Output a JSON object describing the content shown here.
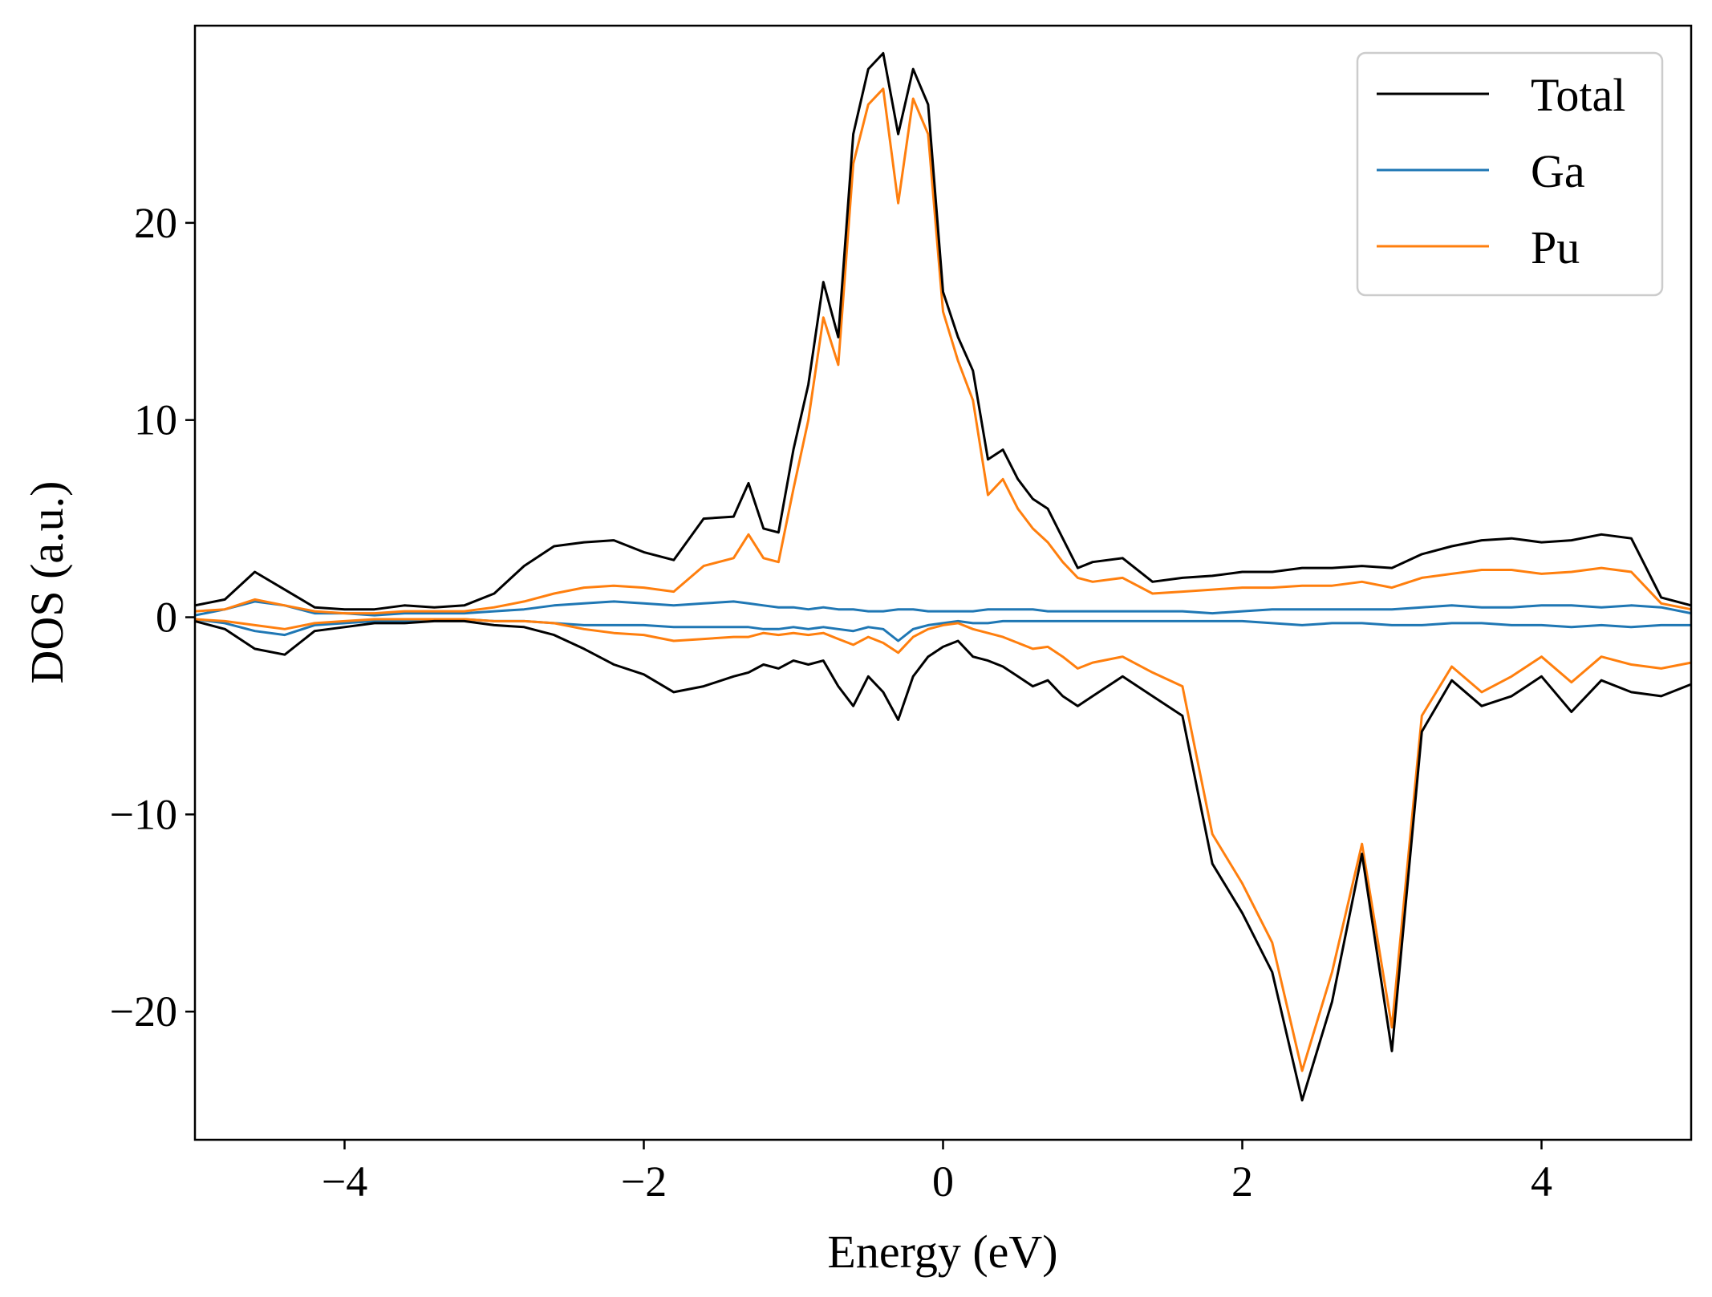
{
  "chart_data": {
    "type": "line",
    "title": "",
    "xlabel": "Energy (eV)",
    "ylabel": "DOS (a.u.)",
    "xlim": [
      -5,
      5
    ],
    "ylim": [
      -26.5,
      30
    ],
    "xticks": [
      -4,
      -2,
      0,
      2,
      4
    ],
    "xtick_labels": [
      "−4",
      "−2",
      "0",
      "2",
      "4"
    ],
    "yticks": [
      -20,
      -10,
      0,
      10,
      20
    ],
    "ytick_labels": [
      "−20",
      "−10",
      "0",
      "10",
      "20"
    ],
    "grid": false,
    "legend_position": "top-right",
    "x": [
      -5.0,
      -4.8,
      -4.6,
      -4.4,
      -4.2,
      -4.0,
      -3.8,
      -3.6,
      -3.4,
      -3.2,
      -3.0,
      -2.8,
      -2.6,
      -2.4,
      -2.2,
      -2.0,
      -1.8,
      -1.6,
      -1.4,
      -1.3,
      -1.2,
      -1.1,
      -1.0,
      -0.9,
      -0.8,
      -0.7,
      -0.6,
      -0.5,
      -0.4,
      -0.3,
      -0.2,
      -0.1,
      0.0,
      0.1,
      0.2,
      0.3,
      0.4,
      0.5,
      0.6,
      0.7,
      0.8,
      0.9,
      1.0,
      1.2,
      1.4,
      1.6,
      1.8,
      2.0,
      2.2,
      2.4,
      2.6,
      2.8,
      3.0,
      3.2,
      3.4,
      3.6,
      3.8,
      4.0,
      4.2,
      4.4,
      4.6,
      4.8,
      5.0
    ],
    "series": [
      {
        "name": "Total",
        "color": "#000000",
        "up": [
          0.6,
          0.9,
          2.3,
          1.4,
          0.5,
          0.4,
          0.4,
          0.6,
          0.5,
          0.6,
          1.2,
          2.6,
          3.6,
          3.8,
          3.9,
          3.3,
          2.9,
          5.0,
          5.1,
          6.8,
          4.5,
          4.3,
          8.5,
          11.8,
          17.0,
          14.2,
          24.5,
          27.8,
          28.6,
          24.5,
          27.8,
          26.0,
          16.5,
          14.2,
          12.5,
          8.0,
          8.5,
          7.0,
          6.0,
          5.5,
          4.0,
          2.5,
          2.8,
          3.0,
          1.8,
          2.0,
          2.1,
          2.3,
          2.3,
          2.5,
          2.5,
          2.6,
          2.5,
          3.2,
          3.6,
          3.9,
          4.0,
          3.8,
          3.9,
          4.2,
          4.0,
          1.0,
          0.6
        ],
        "down": [
          -0.2,
          -0.6,
          -1.6,
          -1.9,
          -0.7,
          -0.5,
          -0.3,
          -0.3,
          -0.2,
          -0.2,
          -0.4,
          -0.5,
          -0.9,
          -1.6,
          -2.4,
          -2.9,
          -3.8,
          -3.5,
          -3.0,
          -2.8,
          -2.4,
          -2.6,
          -2.2,
          -2.4,
          -2.2,
          -3.5,
          -4.5,
          -3.0,
          -3.8,
          -5.2,
          -3.0,
          -2.0,
          -1.5,
          -1.2,
          -2.0,
          -2.2,
          -2.5,
          -3.0,
          -3.5,
          -3.2,
          -4.0,
          -4.5,
          -4.0,
          -3.0,
          -4.0,
          -5.0,
          -12.5,
          -15.0,
          -18.0,
          -24.5,
          -19.5,
          -12.0,
          -22.0,
          -5.8,
          -3.2,
          -4.5,
          -4.0,
          -3.0,
          -4.8,
          -3.2,
          -3.8,
          -4.0,
          -3.4
        ]
      },
      {
        "name": "Ga",
        "color": "#1f77b4",
        "up": [
          0.1,
          0.4,
          0.8,
          0.6,
          0.2,
          0.2,
          0.1,
          0.2,
          0.2,
          0.2,
          0.3,
          0.4,
          0.6,
          0.7,
          0.8,
          0.7,
          0.6,
          0.7,
          0.8,
          0.7,
          0.6,
          0.5,
          0.5,
          0.4,
          0.5,
          0.4,
          0.4,
          0.3,
          0.3,
          0.4,
          0.4,
          0.3,
          0.3,
          0.3,
          0.3,
          0.4,
          0.4,
          0.4,
          0.4,
          0.3,
          0.3,
          0.3,
          0.3,
          0.3,
          0.3,
          0.3,
          0.2,
          0.3,
          0.4,
          0.4,
          0.4,
          0.4,
          0.4,
          0.5,
          0.6,
          0.5,
          0.5,
          0.6,
          0.6,
          0.5,
          0.6,
          0.5,
          0.2
        ],
        "down": [
          -0.1,
          -0.3,
          -0.7,
          -0.9,
          -0.4,
          -0.3,
          -0.2,
          -0.2,
          -0.1,
          -0.1,
          -0.2,
          -0.2,
          -0.3,
          -0.4,
          -0.4,
          -0.4,
          -0.5,
          -0.5,
          -0.5,
          -0.5,
          -0.6,
          -0.6,
          -0.5,
          -0.6,
          -0.5,
          -0.6,
          -0.7,
          -0.5,
          -0.6,
          -1.2,
          -0.6,
          -0.4,
          -0.3,
          -0.2,
          -0.3,
          -0.3,
          -0.2,
          -0.2,
          -0.2,
          -0.2,
          -0.2,
          -0.2,
          -0.2,
          -0.2,
          -0.2,
          -0.2,
          -0.2,
          -0.2,
          -0.3,
          -0.4,
          -0.3,
          -0.3,
          -0.4,
          -0.4,
          -0.3,
          -0.3,
          -0.4,
          -0.4,
          -0.5,
          -0.4,
          -0.5,
          -0.4,
          -0.4
        ]
      },
      {
        "name": "Pu",
        "color": "#ff7f0e",
        "up": [
          0.3,
          0.4,
          0.9,
          0.6,
          0.3,
          0.2,
          0.2,
          0.3,
          0.3,
          0.3,
          0.5,
          0.8,
          1.2,
          1.5,
          1.6,
          1.5,
          1.3,
          2.6,
          3.0,
          4.2,
          3.0,
          2.8,
          6.5,
          10.0,
          15.2,
          12.8,
          23.0,
          26.0,
          26.8,
          21.0,
          26.3,
          24.5,
          15.5,
          13.0,
          11.0,
          6.2,
          7.0,
          5.5,
          4.5,
          3.8,
          2.8,
          2.0,
          1.8,
          2.0,
          1.2,
          1.3,
          1.4,
          1.5,
          1.5,
          1.6,
          1.6,
          1.8,
          1.5,
          2.0,
          2.2,
          2.4,
          2.4,
          2.2,
          2.3,
          2.5,
          2.3,
          0.7,
          0.4
        ],
        "down": [
          -0.1,
          -0.2,
          -0.4,
          -0.6,
          -0.3,
          -0.2,
          -0.1,
          -0.1,
          -0.1,
          -0.1,
          -0.2,
          -0.2,
          -0.3,
          -0.6,
          -0.8,
          -0.9,
          -1.2,
          -1.1,
          -1.0,
          -1.0,
          -0.8,
          -0.9,
          -0.8,
          -0.9,
          -0.8,
          -1.1,
          -1.4,
          -1.0,
          -1.3,
          -1.8,
          -1.0,
          -0.6,
          -0.4,
          -0.3,
          -0.6,
          -0.8,
          -1.0,
          -1.3,
          -1.6,
          -1.5,
          -2.0,
          -2.6,
          -2.3,
          -2.0,
          -2.8,
          -3.5,
          -11.0,
          -13.5,
          -16.5,
          -23.0,
          -18.0,
          -11.5,
          -20.8,
          -5.0,
          -2.5,
          -3.8,
          -3.0,
          -2.0,
          -3.3,
          -2.0,
          -2.4,
          -2.6,
          -2.3
        ]
      }
    ]
  }
}
